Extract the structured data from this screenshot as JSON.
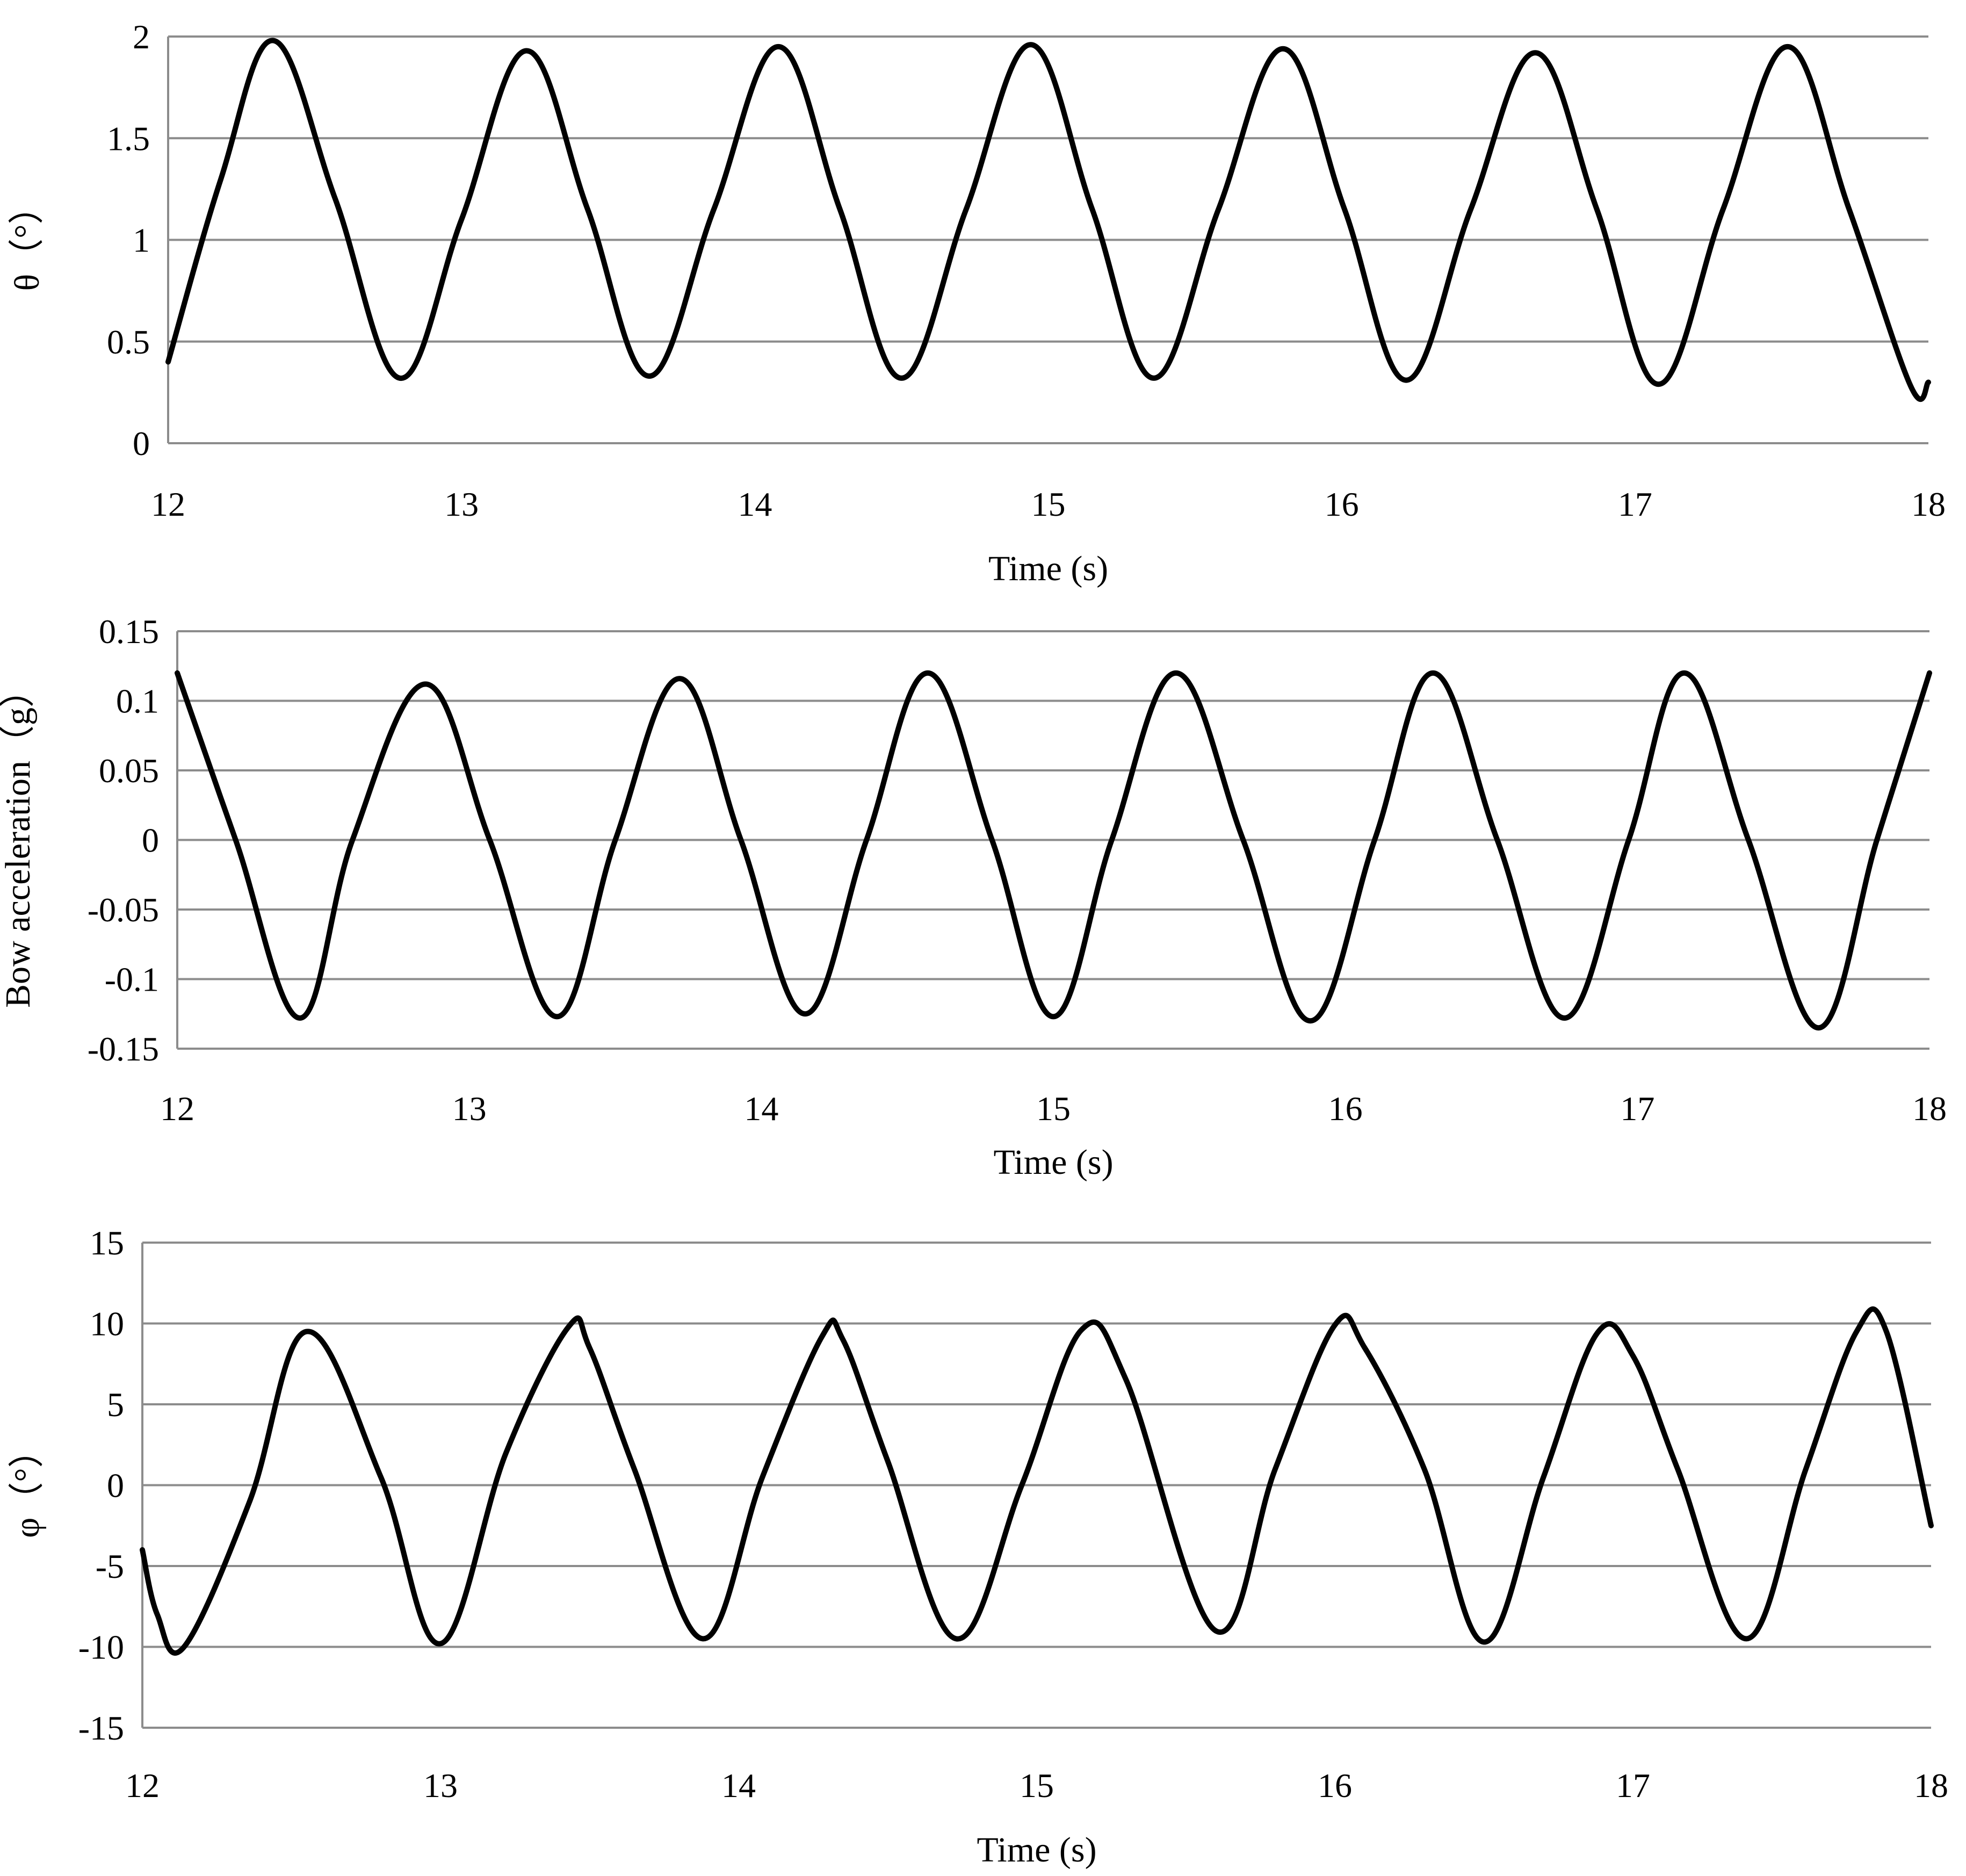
{
  "chart_data": [
    {
      "type": "line",
      "xlabel": "Time (s)",
      "ylabel": "θ（°）",
      "xlim": [
        12,
        18
      ],
      "ylim": [
        0,
        2
      ],
      "xticks": [
        "12",
        "13",
        "14",
        "15",
        "16",
        "17",
        "18"
      ],
      "yticks": [
        "0",
        "0.5",
        "1",
        "1.5",
        "2"
      ],
      "grid": "horizontal",
      "series": [
        {
          "color": "#000000",
          "x": [
            12.0,
            12.18,
            12.36,
            12.57,
            12.79,
            13.0,
            13.22,
            13.43,
            13.64,
            13.86,
            14.08,
            14.29,
            14.5,
            14.72,
            14.94,
            15.15,
            15.36,
            15.58,
            15.8,
            16.01,
            16.22,
            16.44,
            16.66,
            16.87,
            17.08,
            17.3,
            17.52,
            17.73,
            17.94,
            18.0
          ],
          "y": [
            0.4,
            1.3,
            1.98,
            1.2,
            0.32,
            1.1,
            1.93,
            1.15,
            0.33,
            1.15,
            1.95,
            1.15,
            0.32,
            1.15,
            1.96,
            1.15,
            0.32,
            1.15,
            1.94,
            1.15,
            0.31,
            1.15,
            1.92,
            1.15,
            0.29,
            1.15,
            1.95,
            1.15,
            0.28,
            0.3
          ]
        }
      ]
    },
    {
      "type": "line",
      "xlabel": "Time (s)",
      "ylabel": "Bow acceleration（g）",
      "xlim": [
        12,
        18
      ],
      "ylim": [
        -0.15,
        0.15
      ],
      "xticks": [
        "12",
        "13",
        "14",
        "15",
        "16",
        "17",
        "18"
      ],
      "yticks": [
        "-0.15",
        "-0.1",
        "-0.05",
        "0",
        "0.05",
        "0.1",
        "0.15"
      ],
      "grid": "horizontal",
      "series": [
        {
          "color": "#000000",
          "x": [
            12.0,
            12.2,
            12.42,
            12.6,
            12.85,
            13.07,
            13.3,
            13.5,
            13.72,
            13.93,
            14.15,
            14.36,
            14.57,
            14.79,
            15.0,
            15.2,
            15.42,
            15.65,
            15.88,
            16.1,
            16.3,
            16.52,
            16.75,
            16.97,
            17.16,
            17.38,
            17.62,
            17.82,
            18.0
          ],
          "y": [
            0.12,
            0.0,
            -0.128,
            0.0,
            0.112,
            0.0,
            -0.127,
            0.0,
            0.116,
            0.0,
            -0.125,
            0.0,
            0.12,
            0.0,
            -0.127,
            0.0,
            0.12,
            0.0,
            -0.13,
            0.0,
            0.12,
            0.0,
            -0.128,
            0.0,
            0.12,
            0.0,
            -0.135,
            0.0,
            0.12
          ]
        }
      ]
    },
    {
      "type": "line",
      "xlabel": "Time (s)",
      "ylabel": "φ（°）",
      "xlim": [
        12,
        18
      ],
      "ylim": [
        -15,
        15
      ],
      "xticks": [
        "12",
        "13",
        "14",
        "15",
        "16",
        "17",
        "18"
      ],
      "yticks": [
        "-15",
        "-10",
        "-5",
        "0",
        "5",
        "10",
        "15"
      ],
      "grid": "horizontal",
      "series": [
        {
          "color": "#000000",
          "x": [
            12.0,
            12.05,
            12.14,
            12.36,
            12.55,
            12.8,
            13.0,
            13.22,
            13.43,
            13.5,
            13.65,
            13.88,
            14.08,
            14.28,
            14.35,
            14.5,
            14.73,
            14.95,
            15.15,
            15.3,
            15.6,
            15.8,
            16.0,
            16.1,
            16.3,
            16.5,
            16.7,
            16.88,
            17.0,
            17.15,
            17.38,
            17.58,
            17.75,
            17.85,
            18.0
          ],
          "y": [
            -4.0,
            -8.0,
            -10.0,
            -1.0,
            9.5,
            0.5,
            -9.8,
            2.0,
            9.8,
            8.5,
            1.0,
            -9.5,
            0.5,
            9.2,
            9.0,
            1.5,
            -9.5,
            0.0,
            9.6,
            6.5,
            -9.0,
            1.0,
            9.9,
            8.5,
            1.0,
            -9.7,
            0.5,
            9.4,
            8.0,
            1.0,
            -9.5,
            1.0,
            9.5,
            9.5,
            -2.5
          ]
        }
      ]
    }
  ]
}
